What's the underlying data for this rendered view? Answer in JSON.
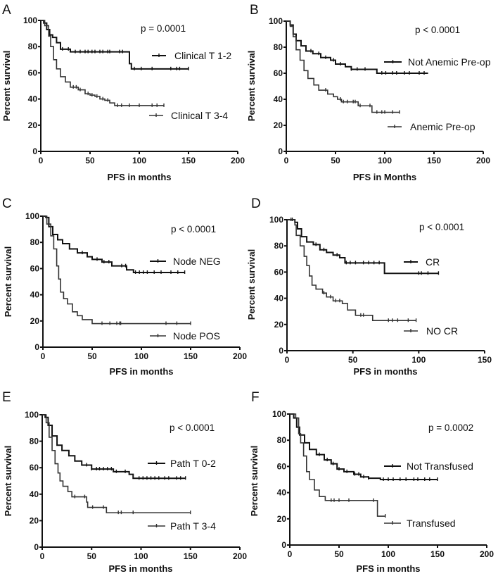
{
  "chart_data": [
    {
      "type": "line",
      "panel": "A",
      "title": "",
      "p_value": "p = 0.0001",
      "xlabel": "PFS in months",
      "ylabel": "Percent survival",
      "xlim": [
        0,
        200
      ],
      "ylim": [
        0,
        100
      ],
      "xticks": [
        "0",
        "50",
        "100",
        "150",
        "200"
      ],
      "yticks": [
        "0",
        "20",
        "40",
        "60",
        "80",
        "100"
      ],
      "series": [
        {
          "name": "Clinical T 1-2",
          "color": "#111111",
          "steps": [
            [
              0,
              100
            ],
            [
              3,
              98
            ],
            [
              6,
              93
            ],
            [
              9,
              89
            ],
            [
              12,
              87
            ],
            [
              16,
              83
            ],
            [
              20,
              78
            ],
            [
              30,
              76
            ],
            [
              88,
              76
            ],
            [
              90,
              67
            ],
            [
              92,
              63
            ],
            [
              150,
              63
            ]
          ],
          "censored": [
            22,
            28,
            35,
            40,
            45,
            48,
            52,
            55,
            60,
            63,
            68,
            70,
            80,
            83,
            95,
            102,
            113,
            132,
            138,
            141,
            150
          ]
        },
        {
          "name": "Clinical T 3-4",
          "color": "#333333",
          "steps": [
            [
              0,
              100
            ],
            [
              4,
              96
            ],
            [
              8,
              88
            ],
            [
              10,
              80
            ],
            [
              13,
              70
            ],
            [
              16,
              63
            ],
            [
              20,
              57
            ],
            [
              25,
              53
            ],
            [
              30,
              49
            ],
            [
              38,
              47
            ],
            [
              45,
              44
            ],
            [
              50,
              43
            ],
            [
              55,
              42
            ],
            [
              60,
              40
            ],
            [
              65,
              39
            ],
            [
              70,
              37
            ],
            [
              75,
              35
            ],
            [
              125,
              35
            ]
          ],
          "censored": [
            33,
            36,
            40,
            48,
            52,
            57,
            63,
            68,
            78,
            82,
            90,
            100,
            113,
            118,
            125
          ]
        }
      ]
    },
    {
      "type": "line",
      "panel": "B",
      "title": "",
      "p_value": "p < 0.0001",
      "xlabel": "PFS in Months",
      "ylabel": "Percent survival",
      "xlim": [
        0,
        200
      ],
      "ylim": [
        0,
        100
      ],
      "xticks": [
        "0",
        "50",
        "100",
        "150",
        "200"
      ],
      "yticks": [
        "0",
        "20",
        "40",
        "60",
        "80",
        "100"
      ],
      "series": [
        {
          "name": "Not Anemic Pre-op",
          "color": "#111111",
          "steps": [
            [
              0,
              100
            ],
            [
              4,
              97
            ],
            [
              7,
              90
            ],
            [
              10,
              85
            ],
            [
              15,
              81
            ],
            [
              20,
              77
            ],
            [
              27,
              75
            ],
            [
              35,
              72
            ],
            [
              45,
              70
            ],
            [
              50,
              67
            ],
            [
              60,
              65
            ],
            [
              66,
              63
            ],
            [
              92,
              60
            ],
            [
              144,
              60
            ]
          ],
          "censored": [
            25,
            33,
            40,
            48,
            55,
            66,
            72,
            80,
            97,
            101,
            108,
            112,
            120,
            125,
            135,
            140
          ]
        },
        {
          "name": "Anemic Pre-op",
          "color": "#333333",
          "steps": [
            [
              0,
              100
            ],
            [
              4,
              96
            ],
            [
              7,
              88
            ],
            [
              10,
              78
            ],
            [
              14,
              70
            ],
            [
              18,
              62
            ],
            [
              22,
              56
            ],
            [
              28,
              51
            ],
            [
              33,
              47
            ],
            [
              42,
              44
            ],
            [
              48,
              42
            ],
            [
              52,
              40
            ],
            [
              56,
              38
            ],
            [
              73,
              35
            ],
            [
              87,
              30
            ],
            [
              115,
              30
            ]
          ],
          "censored": [
            40,
            55,
            58,
            62,
            68,
            70,
            75,
            85,
            92,
            97,
            100,
            108,
            115
          ]
        }
      ]
    },
    {
      "type": "line",
      "panel": "C",
      "title": "",
      "p_value": "p < 0.0001",
      "xlabel": "PFS in months",
      "ylabel": "Percent survival",
      "xlim": [
        0,
        200
      ],
      "ylim": [
        0,
        100
      ],
      "xticks": [
        "0",
        "50",
        "100",
        "150",
        "200"
      ],
      "yticks": [
        "0",
        "20",
        "40",
        "60",
        "80",
        "100"
      ],
      "series": [
        {
          "name": "Node NEG",
          "color": "#111111",
          "steps": [
            [
              0,
              100
            ],
            [
              3,
              99
            ],
            [
              6,
              92
            ],
            [
              10,
              86
            ],
            [
              15,
              82
            ],
            [
              20,
              79
            ],
            [
              27,
              75
            ],
            [
              35,
              72
            ],
            [
              45,
              69
            ],
            [
              50,
              67
            ],
            [
              60,
              65
            ],
            [
              70,
              62
            ],
            [
              85,
              59
            ],
            [
              92,
              57
            ],
            [
              144,
              57
            ]
          ],
          "censored": [
            40,
            55,
            62,
            67,
            80,
            84,
            94,
            98,
            102,
            106,
            113,
            120,
            130,
            137,
            144
          ]
        },
        {
          "name": "Node POS",
          "color": "#333333",
          "steps": [
            [
              0,
              100
            ],
            [
              4,
              94
            ],
            [
              8,
              85
            ],
            [
              11,
              75
            ],
            [
              14,
              62
            ],
            [
              16,
              52
            ],
            [
              18,
              42
            ],
            [
              21,
              37
            ],
            [
              25,
              33
            ],
            [
              30,
              27
            ],
            [
              35,
              24
            ],
            [
              40,
              21
            ],
            [
              50,
              18
            ],
            [
              150,
              18
            ]
          ],
          "censored": [
            60,
            68,
            75,
            78,
            79,
            125,
            136,
            150
          ]
        }
      ]
    },
    {
      "type": "line",
      "panel": "D",
      "title": "",
      "p_value": "p < 0.0001",
      "xlabel": "PFS in months",
      "ylabel": "Percent survival",
      "xlim": [
        0,
        150
      ],
      "ylim": [
        0,
        100
      ],
      "xticks": [
        "0",
        "50",
        "100",
        "150"
      ],
      "yticks": [
        "0",
        "20",
        "40",
        "60",
        "80",
        "100"
      ],
      "series": [
        {
          "name": "CR",
          "color": "#111111",
          "steps": [
            [
              0,
              100
            ],
            [
              6,
              98
            ],
            [
              8,
              93
            ],
            [
              11,
              87
            ],
            [
              15,
              83
            ],
            [
              20,
              81
            ],
            [
              25,
              77
            ],
            [
              30,
              75
            ],
            [
              35,
              73
            ],
            [
              40,
              71
            ],
            [
              44,
              67
            ],
            [
              74,
              67
            ],
            [
              74,
              59
            ],
            [
              115,
              59
            ]
          ],
          "censored": [
            4,
            22,
            28,
            38,
            45,
            48,
            52,
            58,
            62,
            66,
            70,
            100,
            102,
            107,
            115
          ]
        },
        {
          "name": "NO CR",
          "color": "#333333",
          "steps": [
            [
              0,
              100
            ],
            [
              6,
              96
            ],
            [
              7,
              88
            ],
            [
              10,
              80
            ],
            [
              13,
              72
            ],
            [
              15,
              65
            ],
            [
              17,
              57
            ],
            [
              19,
              50
            ],
            [
              22,
              47
            ],
            [
              27,
              44
            ],
            [
              30,
              41
            ],
            [
              35,
              38
            ],
            [
              42,
              36
            ],
            [
              46,
              31
            ],
            [
              52,
              27
            ],
            [
              65,
              23
            ],
            [
              98,
              23
            ]
          ],
          "censored": [
            3,
            28,
            33,
            37,
            40,
            56,
            58,
            77,
            80,
            84,
            92,
            98
          ]
        }
      ]
    },
    {
      "type": "line",
      "panel": "E",
      "title": "",
      "p_value": "p < 0.0001",
      "xlabel": "PFS in months",
      "ylabel": "Percent survival",
      "xlim": [
        0,
        200
      ],
      "ylim": [
        0,
        100
      ],
      "xticks": [
        "0",
        "50",
        "100",
        "150",
        "200"
      ],
      "yticks": [
        "0",
        "20",
        "40",
        "60",
        "80",
        "100"
      ],
      "series": [
        {
          "name": "Path T 0-2",
          "color": "#111111",
          "steps": [
            [
              0,
              100
            ],
            [
              3,
              98
            ],
            [
              6,
              92
            ],
            [
              10,
              84
            ],
            [
              15,
              77
            ],
            [
              20,
              73
            ],
            [
              27,
              69
            ],
            [
              33,
              65
            ],
            [
              40,
              62
            ],
            [
              50,
              59
            ],
            [
              60,
              59
            ],
            [
              72,
              57
            ],
            [
              88,
              55
            ],
            [
              92,
              52
            ],
            [
              145,
              52
            ]
          ],
          "censored": [
            45,
            50,
            55,
            58,
            62,
            66,
            70,
            75,
            84,
            98,
            102,
            106,
            110,
            114,
            118,
            124,
            128,
            136,
            140,
            145
          ]
        },
        {
          "name": "Path T 3-4",
          "color": "#333333",
          "steps": [
            [
              0,
              100
            ],
            [
              4,
              94
            ],
            [
              7,
              83
            ],
            [
              10,
              73
            ],
            [
              13,
              63
            ],
            [
              16,
              56
            ],
            [
              18,
              50
            ],
            [
              21,
              46
            ],
            [
              26,
              42
            ],
            [
              30,
              38
            ],
            [
              42,
              38
            ],
            [
              45,
              34
            ],
            [
              46,
              30
            ],
            [
              64,
              30
            ],
            [
              65,
              26
            ],
            [
              150,
              26
            ]
          ],
          "censored": [
            33,
            43,
            51,
            62,
            77,
            80,
            92,
            150
          ]
        }
      ]
    },
    {
      "type": "line",
      "panel": "F",
      "title": "",
      "p_value": "p = 0.0002",
      "xlabel": "PFS in months",
      "ylabel": "Percent survival",
      "xlim": [
        0,
        200
      ],
      "ylim": [
        0,
        100
      ],
      "xticks": [
        "0",
        "50",
        "100",
        "150",
        "200"
      ],
      "yticks": [
        "0",
        "20",
        "40",
        "60",
        "80",
        "100"
      ],
      "series": [
        {
          "name": "Not Transfused",
          "color": "#111111",
          "steps": [
            [
              0,
              100
            ],
            [
              4,
              97
            ],
            [
              7,
              90
            ],
            [
              10,
              84
            ],
            [
              15,
              78
            ],
            [
              20,
              73
            ],
            [
              27,
              69
            ],
            [
              35,
              65
            ],
            [
              42,
              62
            ],
            [
              48,
              58
            ],
            [
              55,
              56
            ],
            [
              65,
              54
            ],
            [
              72,
              52
            ],
            [
              80,
              51
            ],
            [
              92,
              50
            ],
            [
              150,
              50
            ]
          ],
          "censored": [
            30,
            38,
            44,
            50,
            58,
            66,
            70,
            75,
            80,
            95,
            100,
            105,
            112,
            118,
            126,
            130,
            137,
            142,
            150
          ]
        },
        {
          "name": "Transfused",
          "color": "#333333",
          "steps": [
            [
              0,
              100
            ],
            [
              6,
              97
            ],
            [
              9,
              85
            ],
            [
              11,
              78
            ],
            [
              14,
              68
            ],
            [
              17,
              56
            ],
            [
              20,
              50
            ],
            [
              25,
              42
            ],
            [
              30,
              37
            ],
            [
              36,
              34
            ],
            [
              88,
              34
            ],
            [
              89,
              22
            ],
            [
              97,
              22
            ]
          ],
          "censored": [
            42,
            45,
            50,
            60,
            85,
            97
          ]
        }
      ]
    }
  ]
}
